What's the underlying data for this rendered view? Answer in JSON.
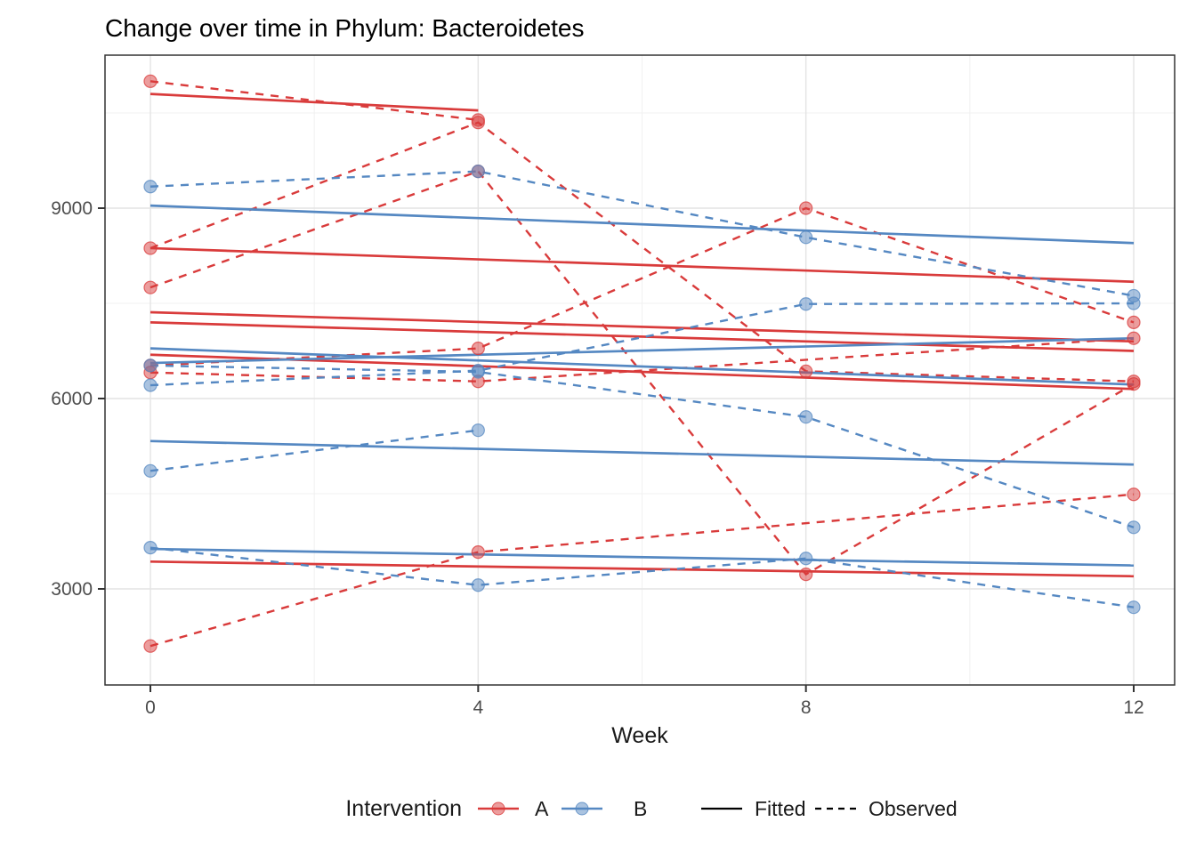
{
  "title": "Change over time in Phylum: Bacteroidetes",
  "x_axis": {
    "label": "Week",
    "ticks": [
      0,
      4,
      8,
      12
    ],
    "minor_ticks": [
      2,
      6,
      10
    ],
    "range_weeks": [
      -0.55,
      12.5
    ]
  },
  "y_axis": {
    "ticks": [
      3000,
      6000,
      9000
    ],
    "minor_ticks": [
      4500,
      7500,
      10500
    ],
    "range": [
      1490,
      11420
    ]
  },
  "legend": {
    "title": "Intervention",
    "groups": [
      {
        "label": "A",
        "color": "#D93B3B",
        "point_fill": "#E89A9A"
      },
      {
        "label": "B",
        "color": "#5588C2",
        "point_fill": "#A9C5E2"
      }
    ],
    "linetypes": [
      {
        "label": "Fitted",
        "style": "solid"
      },
      {
        "label": "Observed",
        "style": "dashed"
      }
    ]
  },
  "colors": {
    "red_line": "#D93B3B",
    "blue_line": "#5588C2",
    "grid_major": "#E4E4E4",
    "grid_minor": "#F1F1F1",
    "panel_border": "#333333",
    "tick_text": "#4D4D4D",
    "title_text": "#000000",
    "axis_label_text": "#1A1A1A",
    "legend_key_line": "#000000"
  },
  "chart_data": {
    "type": "line",
    "x_weeks": [
      0,
      4,
      8,
      12
    ],
    "xlabel": "Week",
    "ylim": [
      1490,
      11420
    ],
    "grid": true,
    "legend_position": "bottom",
    "series": [
      {
        "id": "A1",
        "group": "A",
        "observed": [
          [
            0,
            11000
          ],
          [
            4,
            10390
          ]
        ],
        "fitted": [
          [
            0,
            10800
          ],
          [
            4,
            10540
          ]
        ]
      },
      {
        "id": "A2",
        "group": "A",
        "observed": [
          [
            0,
            8370
          ],
          [
            4,
            10350
          ],
          [
            8,
            6430
          ],
          [
            12,
            6270
          ]
        ],
        "fitted": [
          [
            0,
            8370
          ],
          [
            12,
            7840
          ]
        ]
      },
      {
        "id": "A3",
        "group": "A",
        "observed": [
          [
            0,
            7750
          ],
          [
            4,
            9580
          ],
          [
            8,
            3230
          ],
          [
            12,
            6230
          ]
        ],
        "fitted": [
          [
            0,
            7360
          ],
          [
            12,
            6900
          ]
        ]
      },
      {
        "id": "A4",
        "group": "A",
        "observed": [
          [
            0,
            6520
          ],
          [
            4,
            6790
          ],
          [
            8,
            9000
          ],
          [
            12,
            7200
          ]
        ],
        "fitted": [
          [
            0,
            7200
          ],
          [
            12,
            6750
          ]
        ]
      },
      {
        "id": "A5",
        "group": "A",
        "observed": [
          [
            0,
            6410
          ],
          [
            4,
            6270
          ],
          [
            12,
            6950
          ]
        ],
        "fitted": [
          [
            0,
            6690
          ],
          [
            12,
            6150
          ]
        ]
      },
      {
        "id": "A6",
        "group": "A",
        "observed": [
          [
            0,
            2100
          ],
          [
            4,
            3580
          ],
          [
            12,
            4490
          ]
        ],
        "fitted": [
          [
            0,
            3430
          ],
          [
            12,
            3200
          ]
        ]
      },
      {
        "id": "B1",
        "group": "B",
        "observed": [
          [
            0,
            9340
          ],
          [
            4,
            9580
          ],
          [
            8,
            8540
          ],
          [
            12,
            7620
          ]
        ],
        "fitted": [
          [
            0,
            9040
          ],
          [
            12,
            8450
          ]
        ]
      },
      {
        "id": "B2",
        "group": "B",
        "observed": [
          [
            0,
            6520
          ],
          [
            4,
            6420
          ],
          [
            8,
            5710
          ],
          [
            12,
            3970
          ]
        ],
        "fitted": [
          [
            0,
            6790
          ],
          [
            12,
            6220
          ]
        ]
      },
      {
        "id": "B3",
        "group": "B",
        "observed": [
          [
            0,
            6210
          ],
          [
            4,
            6440
          ],
          [
            8,
            7490
          ],
          [
            12,
            7500
          ]
        ],
        "fitted": [
          [
            0,
            6560
          ],
          [
            12,
            6950
          ]
        ]
      },
      {
        "id": "B4",
        "group": "B",
        "observed": [
          [
            0,
            4860
          ],
          [
            4,
            5500
          ]
        ],
        "fitted": [
          [
            0,
            5330
          ],
          [
            12,
            4960
          ]
        ]
      },
      {
        "id": "B5",
        "group": "B",
        "observed": [
          [
            0,
            3650
          ],
          [
            4,
            3060
          ],
          [
            8,
            3480
          ],
          [
            12,
            2710
          ]
        ],
        "fitted": [
          [
            0,
            3630
          ],
          [
            12,
            3370
          ]
        ]
      }
    ]
  }
}
